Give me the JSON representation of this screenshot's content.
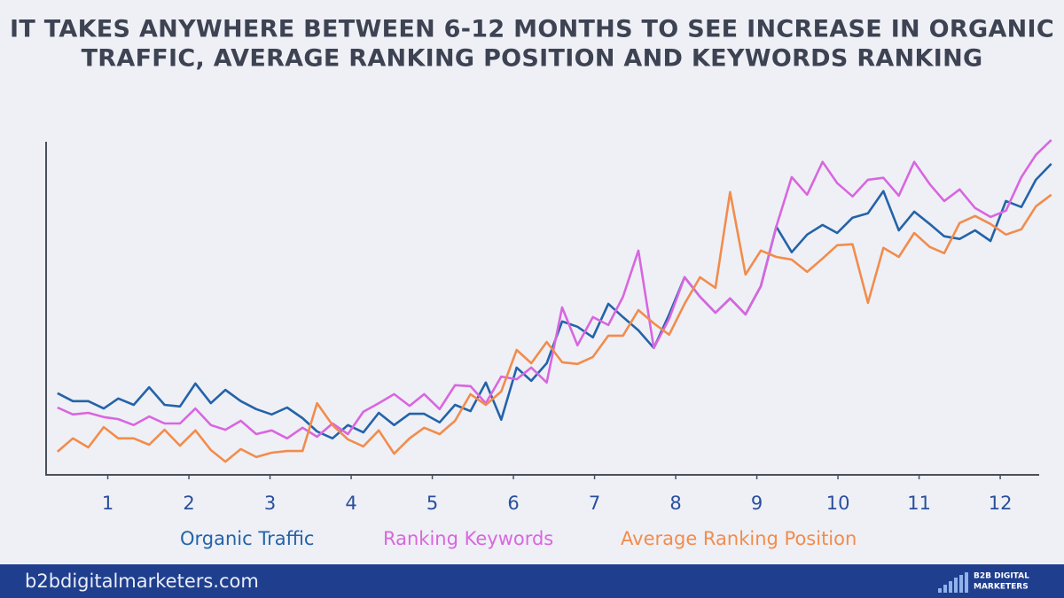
{
  "title": [
    "IT TAKES ANYWHERE BETWEEN 6-12 MONTHS TO SEE INCREASE IN ORGANIC",
    "TRAFFIC, AVERAGE RANKING POSITION AND KEYWORDS RANKING"
  ],
  "chart_data": {
    "type": "line",
    "x": [
      0.38,
      0.57,
      0.76,
      0.95,
      1.13,
      1.32,
      1.51,
      1.7,
      1.89,
      2.08,
      2.27,
      2.45,
      2.64,
      2.83,
      3.02,
      3.21,
      3.4,
      3.58,
      3.77,
      3.96,
      4.15,
      4.34,
      4.53,
      4.72,
      4.9,
      5.09,
      5.28,
      5.47,
      5.66,
      5.85,
      6.04,
      6.22,
      6.41,
      6.6,
      6.79,
      6.98,
      7.17,
      7.35,
      7.54,
      7.73,
      7.92,
      8.11,
      8.3,
      8.49,
      8.67,
      8.86,
      9.05,
      9.24,
      9.43,
      9.62,
      9.81,
      9.99,
      10.18,
      10.37,
      10.56,
      10.75,
      10.94,
      11.13,
      11.31,
      11.5,
      11.69,
      11.88,
      12.07,
      12.26,
      12.44,
      12.63
    ],
    "series": [
      {
        "name": "Organic Traffic",
        "color": "#2463a8",
        "values": [
          24.3,
          21.9,
          21.9,
          19.7,
          22.7,
          20.8,
          26.1,
          20.8,
          20.3,
          27.2,
          21.3,
          25.3,
          21.9,
          19.5,
          17.9,
          20,
          16.8,
          12.8,
          10.7,
          14.7,
          12.5,
          18.4,
          14.7,
          18.1,
          18.1,
          15.5,
          20.8,
          18.9,
          27.5,
          16.3,
          32,
          28,
          33.3,
          45.9,
          44.3,
          41.1,
          51.2,
          47.2,
          43.2,
          37.9,
          48,
          59.2,
          53.3,
          48.5,
          52.8,
          48,
          56.5,
          74.4,
          66.7,
          72,
          74.9,
          72.5,
          77.1,
          78.4,
          85.1,
          73.3,
          78.9,
          75.2,
          71.5,
          70.7,
          73.3,
          70.1,
          82.1,
          80.3,
          88.5,
          93.3
        ]
      },
      {
        "name": "Ranking Keywords",
        "color": "#d966df",
        "values": [
          20,
          17.9,
          18.4,
          17.1,
          16.5,
          14.7,
          17.3,
          15.2,
          15.2,
          19.7,
          14.7,
          13.3,
          16,
          12,
          13.1,
          10.7,
          13.9,
          11.2,
          15.2,
          12,
          18.7,
          21.3,
          24,
          20.5,
          24,
          19.5,
          26.7,
          26.4,
          21.3,
          29.3,
          28.5,
          32,
          27.5,
          50.1,
          38.7,
          47.2,
          44.8,
          53.3,
          67.2,
          37.9,
          46.7,
          59.2,
          53.3,
          48.5,
          52.8,
          48,
          56.5,
          74.4,
          89.3,
          84,
          93.9,
          87.5,
          83.5,
          88.5,
          89.1,
          83.7,
          93.9,
          87.2,
          82.1,
          85.6,
          80,
          77.3,
          79.2,
          89.3,
          96,
          100.5
        ]
      },
      {
        "name": "Average Ranking Position",
        "color": "#f28c4c",
        "values": [
          6.7,
          10.7,
          8,
          14.1,
          10.7,
          10.7,
          8.8,
          13.3,
          8.5,
          13.1,
          7.2,
          3.7,
          7.5,
          5.1,
          6.4,
          6.9,
          6.9,
          21.3,
          14.7,
          10.4,
          8.3,
          13.1,
          6.1,
          10.7,
          13.9,
          12,
          16,
          24,
          20.8,
          24.8,
          37.3,
          33.3,
          39.7,
          33.6,
          33.1,
          35.2,
          41.6,
          41.6,
          49.3,
          45.3,
          41.9,
          51.2,
          59.2,
          56,
          84.8,
          60,
          67.2,
          65.3,
          64.5,
          60.8,
          64.8,
          68.8,
          69.1,
          51.5,
          68,
          65.3,
          72.5,
          68.3,
          66.4,
          75.5,
          77.6,
          75.2,
          72,
          73.6,
          80.5,
          84
        ]
      }
    ],
    "xlim": [
      0.24,
      12.48
    ],
    "xticks": [
      1,
      2,
      3,
      4,
      5,
      6,
      7,
      8,
      9,
      10,
      11,
      12
    ],
    "ylim": [
      0,
      105
    ]
  },
  "footer": {
    "url": "b2bdigitalmarketers.com",
    "logo": [
      "B2B DIGITAL",
      "MARKETERS"
    ]
  }
}
